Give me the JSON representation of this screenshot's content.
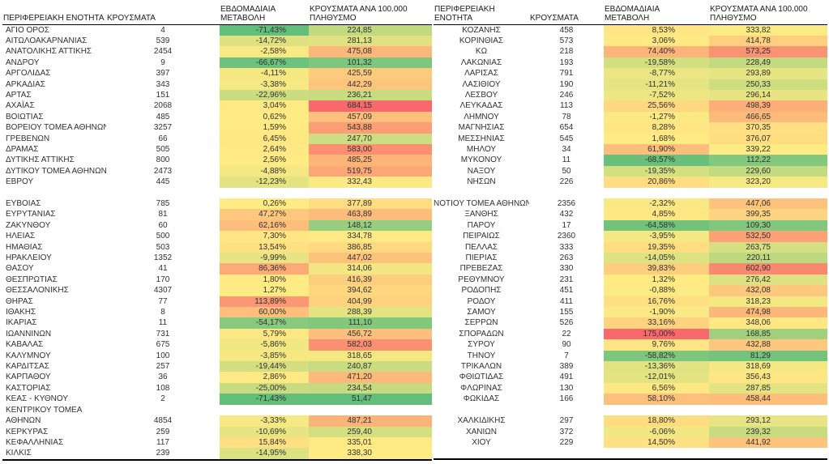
{
  "chart_data": {
    "type": "table",
    "color_scale": {
      "min_color": "#63BE7B",
      "mid_color": "#FFEB84",
      "max_color": "#F8696B",
      "applies_to": [
        "weekly_change",
        "cases_per_100k"
      ]
    },
    "tables": [
      {
        "headers": [
          "ΠΕΡΙΦΕΡΕΙΑΚΗ ΕΝΟΤΗΤΑ",
          "ΚΡΟΥΣΜΑΤΑ",
          "ΕΒΔΟΜΑΔΙΑΙΑ\nΜΕΤΑΒΟΛΗ",
          "ΚΡΟΥΣΜΑΤΑ ΑΝΑ 100.000\nΠΛΗΘΥΣΜΟ"
        ],
        "rows": [
          [
            "ΑΓΙΟ ΟΡΟΣ",
            "4",
            "-71,43%",
            "224,85"
          ],
          [
            "ΑΙΤΩΛΟΑΚΑΡΝΑΝΙΑΣ",
            "539",
            "-14,72%",
            "281,13"
          ],
          [
            "ΑΝΑΤΟΛΙΚΗΣ ΑΤΤΙΚΗΣ",
            "2454",
            "-2,58%",
            "475,08"
          ],
          [
            "ΑΝΔΡΟΥ",
            "9",
            "-66,67%",
            "101,32"
          ],
          [
            "ΑΡΓΟΛΙΔΑΣ",
            "397",
            "-4,11%",
            "425,59"
          ],
          [
            "ΑΡΚΑΔΙΑΣ",
            "343",
            "-3,38%",
            "442,29"
          ],
          [
            "ΑΡΤΑΣ",
            "151",
            "-22,96%",
            "236,21"
          ],
          [
            "ΑΧΑΪΑΣ",
            "2068",
            "3,04%",
            "684,15"
          ],
          [
            "ΒΟΙΩΤΙΑΣ",
            "485",
            "0,62%",
            "457,09"
          ],
          [
            "ΒΟΡΕΙΟΥ ΤΟΜΕΑ ΑΘΗΝΩΝ",
            "3257",
            "1,59%",
            "543,88"
          ],
          [
            "ΓΡΕΒΕΝΩΝ",
            "66",
            "6,45%",
            "247,70"
          ],
          [
            "ΔΡΑΜΑΣ",
            "505",
            "2,64%",
            "583,00"
          ],
          [
            "ΔΥΤΙΚΗΣ ΑΤΤΙΚΗΣ",
            "800",
            "2,56%",
            "485,25"
          ],
          [
            "ΔΥΤΙΚΟΥ ΤΟΜΕΑ ΑΘΗΝΩΝ",
            "2473",
            "-4,88%",
            "519,75"
          ],
          [
            "ΕΒΡΟΥ",
            "445",
            "-12,23%",
            "332,43"
          ],
          null,
          [
            "ΕΥΒΟΙΑΣ",
            "785",
            "0,26%",
            "377,89"
          ],
          [
            "ΕΥΡΥΤΑΝΙΑΣ",
            "81",
            "47,27%",
            "463,89"
          ],
          [
            "ΖΑΚΥΝΘΟΥ",
            "60",
            "62,16%",
            "148,12"
          ],
          [
            "ΗΛΕΙΑΣ",
            "500",
            "7,30%",
            "334,78"
          ],
          [
            "ΗΜΑΘΙΑΣ",
            "503",
            "13,54%",
            "386,85"
          ],
          [
            "ΗΡΑΚΛΕΙΟΥ",
            "1352",
            "-9,99%",
            "447,02"
          ],
          [
            "ΘΑΣΟΥ",
            "41",
            "86,36%",
            "314,06"
          ],
          [
            "ΘΕΣΠΡΩΤΙΑΣ",
            "170",
            "1,80%",
            "416,39"
          ],
          [
            "ΘΕΣΣΑΛΟΝΙΚΗΣ",
            "4307",
            "1,27%",
            "394,62"
          ],
          [
            "ΘΗΡΑΣ",
            "77",
            "113,89%",
            "404,99"
          ],
          [
            "ΙΘΑΚΗΣ",
            "8",
            "60,00%",
            "288,39"
          ],
          [
            "ΙΚΑΡΙΑΣ",
            "11",
            "-54,17%",
            "111,10"
          ],
          [
            "ΙΩΑΝΝΙΝΩΝ",
            "731",
            "5,79%",
            "456,72"
          ],
          [
            "ΚΑΒΑΛΑΣ",
            "675",
            "-5,86%",
            "582,03"
          ],
          [
            "ΚΑΛΥΜΝΟΥ",
            "100",
            "-3,85%",
            "318,65"
          ],
          [
            "ΚΑΡΔΙΤΣΑΣ",
            "257",
            "-19,44%",
            "240,87"
          ],
          [
            "ΚΑΡΠΑΘΟΥ",
            "36",
            "2,86%",
            "471,20"
          ],
          [
            "ΚΑΣΤΟΡΙΑΣ",
            "108",
            "-25,00%",
            "234,54"
          ],
          [
            "ΚΕΑΣ - ΚΥΘΝΟΥ",
            "2",
            "-71,43%",
            "51,47"
          ],
          [
            "ΚΕΝΤΡΙΚΟΥ ΤΟΜΕΑ",
            "",
            "",
            ""
          ],
          [
            "ΑΘΗΝΩΝ",
            "4854",
            "-3,33%",
            "487,21"
          ],
          [
            "ΚΕΡΚΥΡΑΣ",
            "259",
            "-10,69%",
            "259,40"
          ],
          [
            "ΚΕΦΑΛΛΗΝΙΑΣ",
            "117",
            "15,84%",
            "335,01"
          ],
          [
            "ΚΙΛΚΙΣ",
            "239",
            "-14,95%",
            "338,30"
          ]
        ]
      },
      {
        "headers": [
          "ΠΕΡΙΦΕΡΕΙΑΚΗ\nΕΝΟΤΗΤΑ",
          "ΚΡΟΥΣΜΑΤΑ",
          "ΕΒΔΟΜΑΔΙΑΙΑ\nΜΕΤΑΒΟΛΗ",
          "ΚΡΟΥΣΜΑΤΑ ΑΝΑ 100.000\nΠΛΗΘΥΣΜΟ"
        ],
        "rows": [
          [
            "ΚΟΖΑΝΗΣ",
            "458",
            "8,53%",
            "333,82"
          ],
          [
            "ΚΟΡΙΝΘΙΑΣ",
            "573",
            "3,06%",
            "414,78"
          ],
          [
            "ΚΩ",
            "218",
            "74,40%",
            "573,25"
          ],
          [
            "ΛΑΚΩΝΙΑΣ",
            "193",
            "-19,58%",
            "228,49"
          ],
          [
            "ΛΑΡΙΣΑΣ",
            "791",
            "-8,77%",
            "293,89"
          ],
          [
            "ΛΑΣΙΘΙΟΥ",
            "190",
            "-11,21%",
            "250,33"
          ],
          [
            "ΛΕΣΒΟΥ",
            "246",
            "-7,52%",
            "296,14"
          ],
          [
            "ΛΕΥΚΑΔΑΣ",
            "113",
            "25,56%",
            "498,39"
          ],
          [
            "ΛΗΜΝΟΥ",
            "78",
            "-1,27%",
            "466,65"
          ],
          [
            "ΜΑΓΝΗΣΙΑΣ",
            "654",
            "8,28%",
            "370,35"
          ],
          [
            "ΜΕΣΣΗΝΙΑΣ",
            "545",
            "1,68%",
            "376,07"
          ],
          [
            "ΜΗΛΟΥ",
            "34",
            "61,90%",
            "339,22"
          ],
          [
            "ΜΥΚΟΝΟΥ",
            "11",
            "-68,57%",
            "112,22"
          ],
          [
            "ΝΑΞΟΥ",
            "50",
            "-19,35%",
            "229,60"
          ],
          [
            "ΝΗΣΩΝ",
            "226",
            "20,86%",
            "323,20"
          ],
          null,
          [
            "ΝΟΤΙΟΥ ΤΟΜΕΑ ΑΘΗΝΩΝ",
            "2356",
            "-2,32%",
            "447,06"
          ],
          [
            "ΞΑΝΘΗΣ",
            "432",
            "4,85%",
            "399,35"
          ],
          [
            "ΠΑΡΟΥ",
            "17",
            "-64,58%",
            "109,30"
          ],
          [
            "ΠΕΙΡΑΙΩΣ",
            "2360",
            "-3,95%",
            "532,50"
          ],
          [
            "ΠΕΛΛΑΣ",
            "333",
            "19,35%",
            "263,75"
          ],
          [
            "ΠΙΕΡΙΑΣ",
            "263",
            "-14,05%",
            "220,11"
          ],
          [
            "ΠΡΕΒΕΖΑΣ",
            "330",
            "39,83%",
            "602,90"
          ],
          [
            "ΡΕΘΥΜΝΟΥ",
            "231",
            "1,32%",
            "276,42"
          ],
          [
            "ΡΟΔΟΠΗΣ",
            "451",
            "-0,88%",
            "432,08"
          ],
          [
            "ΡΟΔΟΥ",
            "411",
            "16,76%",
            "318,23"
          ],
          [
            "ΣΑΜΟΥ",
            "155",
            "-1,90%",
            "474,98"
          ],
          [
            "ΣΕΡΡΩΝ",
            "526",
            "33,16%",
            "348,06"
          ],
          [
            "ΣΠΟΡΑΔΩΝ",
            "22",
            "175,00%",
            "168,85"
          ],
          [
            "ΣΥΡΟΥ",
            "90",
            "9,76%",
            "432,88"
          ],
          [
            "ΤΗΝΟΥ",
            "7",
            "-58,82%",
            "81,29"
          ],
          [
            "ΤΡΙΚΑΛΩΝ",
            "389",
            "-13,36%",
            "318,69"
          ],
          [
            "ΦΘΙΩΤΙΔΑΣ",
            "491",
            "-12,01%",
            "356,43"
          ],
          [
            "ΦΛΩΡΙΝΑΣ",
            "130",
            "6,56%",
            "287,85"
          ],
          [
            "ΦΩΚΙΔΑΣ",
            "166",
            "58,10%",
            "458,44"
          ],
          null,
          [
            "ΧΑΛΚΙΔΙΚΗΣ",
            "297",
            "18,80%",
            "293,12"
          ],
          [
            "ΧΑΝΙΩΝ",
            "372",
            "-6,06%",
            "239,32"
          ],
          [
            "ΧΙΟΥ",
            "229",
            "14,50%",
            "441,92"
          ],
          null
        ]
      }
    ]
  }
}
